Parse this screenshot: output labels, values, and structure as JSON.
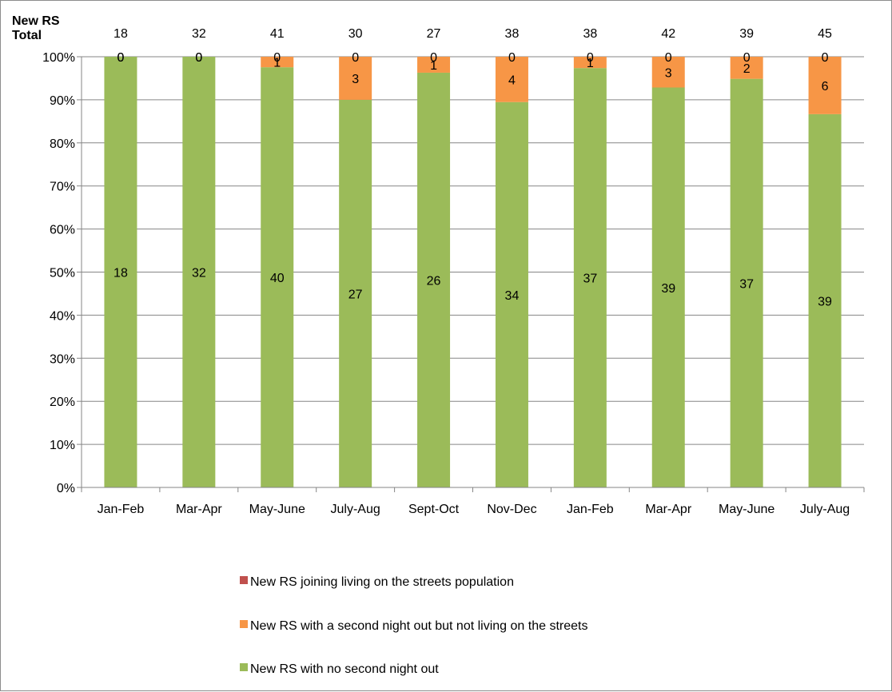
{
  "chart_data": {
    "type": "bar",
    "stacked": true,
    "normalized": true,
    "categories": [
      "Jan-Feb",
      "Mar-Apr",
      "May-June",
      "July-Aug",
      "Sept-Oct",
      "Nov-Dec",
      "Jan-Feb",
      "Mar-Apr",
      "May-June",
      "July-Aug"
    ],
    "totals_header": "New RS Total",
    "totals": [
      18,
      32,
      41,
      30,
      27,
      38,
      38,
      42,
      39,
      45
    ],
    "series": [
      {
        "name": "New RS with no second night out",
        "color": "#9bbb59",
        "values": [
          18,
          32,
          40,
          27,
          26,
          34,
          37,
          39,
          37,
          39
        ]
      },
      {
        "name": "New RS with a second night out but not living on the streets",
        "color": "#f79646",
        "values": [
          0,
          0,
          1,
          3,
          1,
          4,
          1,
          3,
          2,
          6
        ]
      },
      {
        "name": "New RS joining living on the streets population",
        "color": "#c0504d",
        "values": [
          0,
          0,
          0,
          0,
          0,
          0,
          0,
          0,
          0,
          0
        ]
      }
    ],
    "y_ticks": [
      "0%",
      "10%",
      "20%",
      "30%",
      "40%",
      "50%",
      "60%",
      "70%",
      "80%",
      "90%",
      "100%"
    ],
    "ylim": [
      0,
      100
    ],
    "grid": true,
    "legend_position": "bottom"
  }
}
